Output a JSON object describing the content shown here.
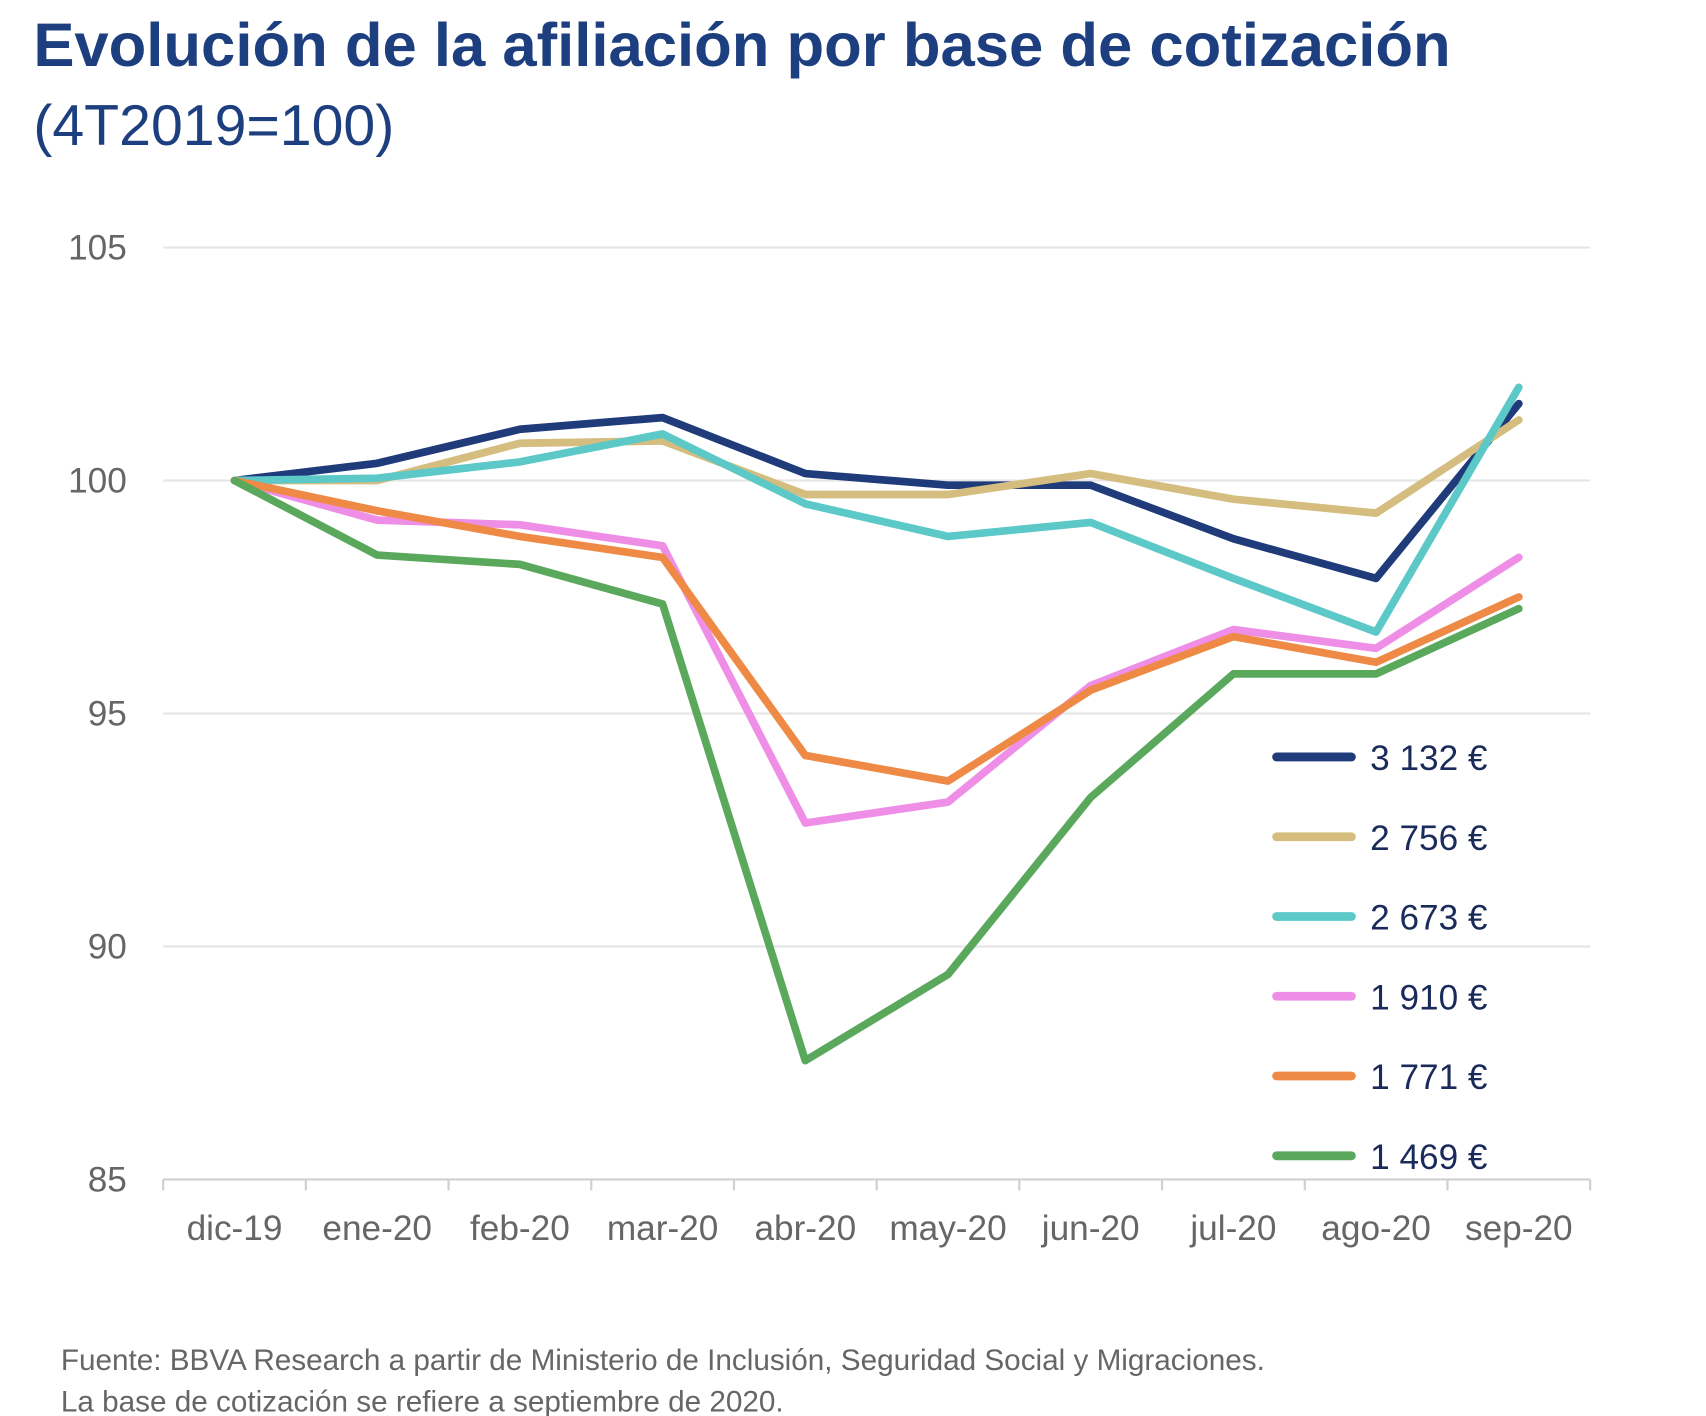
{
  "chart_data": {
    "type": "line",
    "title": "Evolución de la afiliación por base de cotización",
    "subtitle": "(4T2019=100)",
    "categories": [
      "dic-19",
      "ene-20",
      "feb-20",
      "mar-20",
      "abr-20",
      "may-20",
      "jun-20",
      "jul-20",
      "ago-20",
      "sep-20"
    ],
    "y_ticks": [
      "105",
      "100",
      "95",
      "90",
      "85"
    ],
    "ylim": [
      85,
      105
    ],
    "grid": true,
    "legend_position": "bottom-right",
    "series": [
      {
        "name": "3 132 €",
        "color": "#1f3b7a",
        "values": [
          100,
          100.37,
          101.1,
          101.35,
          100.15,
          99.9,
          99.9,
          98.75,
          97.9,
          101.65
        ]
      },
      {
        "name": "2 756 €",
        "color": "#d4bd7f",
        "values": [
          100,
          100.0,
          100.8,
          100.85,
          99.7,
          99.7,
          100.15,
          99.6,
          99.3,
          101.3
        ]
      },
      {
        "name": "2 673 €",
        "color": "#5cc8c8",
        "values": [
          100,
          100.05,
          100.4,
          101.0,
          99.5,
          98.8,
          99.1,
          97.9,
          96.75,
          102.0
        ]
      },
      {
        "name": "1 910 €",
        "color": "#ee8ee6",
        "values": [
          100,
          99.15,
          99.05,
          98.6,
          92.65,
          93.1,
          95.6,
          96.8,
          96.4,
          98.35
        ]
      },
      {
        "name": "1 771 €",
        "color": "#ee8a45",
        "values": [
          100,
          99.35,
          98.8,
          98.35,
          94.1,
          93.55,
          95.5,
          96.65,
          96.1,
          97.5
        ]
      },
      {
        "name": "1 469 €",
        "color": "#5aa85c",
        "values": [
          100,
          98.4,
          98.2,
          97.35,
          87.55,
          89.4,
          93.2,
          95.85,
          95.85,
          97.25
        ]
      }
    ],
    "notes": [
      "Fuente: BBVA Research a partir de Ministerio de Inclusión, Seguridad Social y Migraciones.",
      "La base de cotización se refiere a septiembre de 2020."
    ]
  }
}
